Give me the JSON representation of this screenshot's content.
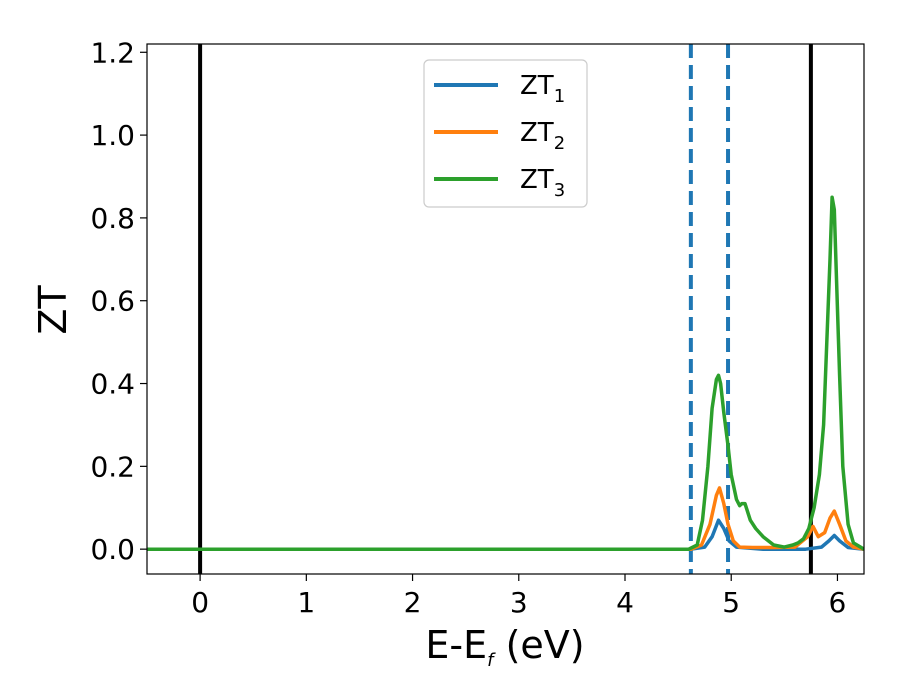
{
  "chart_data": {
    "type": "line",
    "xlabel_main": "E-E",
    "xlabel_sub": "f",
    "xlabel_unit": " (eV)",
    "ylabel": "ZT",
    "xlim": [
      -0.5,
      6.25
    ],
    "ylim": [
      -0.06,
      1.22
    ],
    "xticks": [
      0,
      1,
      2,
      3,
      4,
      5,
      6
    ],
    "yticks": [
      0.0,
      0.2,
      0.4,
      0.6,
      0.8,
      1.0,
      1.2
    ],
    "ytick_labels": [
      "0.0",
      "0.2",
      "0.4",
      "0.6",
      "0.8",
      "1.0",
      "1.2"
    ],
    "grid": false,
    "legend_position": "top-center",
    "vlines": [
      {
        "x": 0.0,
        "style": "solid",
        "color": "#000000"
      },
      {
        "x": 5.75,
        "style": "solid",
        "color": "#000000"
      },
      {
        "x": 4.62,
        "style": "dashed",
        "color": "#1f77b4"
      },
      {
        "x": 4.97,
        "style": "dashed",
        "color": "#1f77b4"
      }
    ],
    "series": [
      {
        "name": "ZT",
        "name_sub": "1",
        "color": "#1f77b4",
        "points": [
          [
            -0.5,
            0
          ],
          [
            4.62,
            0
          ],
          [
            4.75,
            0.005
          ],
          [
            4.82,
            0.03
          ],
          [
            4.88,
            0.07
          ],
          [
            4.93,
            0.05
          ],
          [
            4.98,
            0.02
          ],
          [
            5.05,
            0.005
          ],
          [
            5.3,
            0
          ],
          [
            5.7,
            0
          ],
          [
            5.85,
            0.005
          ],
          [
            5.92,
            0.02
          ],
          [
            5.97,
            0.033
          ],
          [
            6.02,
            0.02
          ],
          [
            6.1,
            0.004
          ],
          [
            6.25,
            0
          ]
        ]
      },
      {
        "name": "ZT",
        "name_sub": "2",
        "color": "#ff7f0e",
        "points": [
          [
            -0.5,
            0
          ],
          [
            4.62,
            0
          ],
          [
            4.72,
            0.01
          ],
          [
            4.8,
            0.06
          ],
          [
            4.86,
            0.13
          ],
          [
            4.89,
            0.148
          ],
          [
            4.93,
            0.11
          ],
          [
            4.97,
            0.06
          ],
          [
            5.02,
            0.02
          ],
          [
            5.08,
            0.005
          ],
          [
            5.2,
            0.004
          ],
          [
            5.4,
            0.004
          ],
          [
            5.6,
            0.005
          ],
          [
            5.72,
            0.03
          ],
          [
            5.77,
            0.055
          ],
          [
            5.82,
            0.03
          ],
          [
            5.88,
            0.04
          ],
          [
            5.93,
            0.075
          ],
          [
            5.97,
            0.092
          ],
          [
            6.02,
            0.06
          ],
          [
            6.08,
            0.02
          ],
          [
            6.15,
            0.005
          ],
          [
            6.25,
            0
          ]
        ]
      },
      {
        "name": "ZT",
        "name_sub": "3",
        "color": "#2ca02c",
        "points": [
          [
            -0.5,
            0
          ],
          [
            4.6,
            0
          ],
          [
            4.68,
            0.01
          ],
          [
            4.73,
            0.07
          ],
          [
            4.78,
            0.2
          ],
          [
            4.82,
            0.34
          ],
          [
            4.86,
            0.41
          ],
          [
            4.88,
            0.42
          ],
          [
            4.9,
            0.4
          ],
          [
            4.93,
            0.33
          ],
          [
            4.97,
            0.25
          ],
          [
            5.0,
            0.18
          ],
          [
            5.05,
            0.12
          ],
          [
            5.08,
            0.105
          ],
          [
            5.1,
            0.11
          ],
          [
            5.13,
            0.11
          ],
          [
            5.18,
            0.07
          ],
          [
            5.23,
            0.05
          ],
          [
            5.3,
            0.03
          ],
          [
            5.4,
            0.01
          ],
          [
            5.5,
            0.005
          ],
          [
            5.58,
            0.01
          ],
          [
            5.63,
            0.015
          ],
          [
            5.68,
            0.025
          ],
          [
            5.73,
            0.05
          ],
          [
            5.78,
            0.1
          ],
          [
            5.83,
            0.18
          ],
          [
            5.87,
            0.3
          ],
          [
            5.9,
            0.5
          ],
          [
            5.93,
            0.7
          ],
          [
            5.95,
            0.85
          ],
          [
            5.97,
            0.82
          ],
          [
            5.99,
            0.66
          ],
          [
            6.02,
            0.42
          ],
          [
            6.05,
            0.2
          ],
          [
            6.1,
            0.06
          ],
          [
            6.15,
            0.015
          ],
          [
            6.25,
            0
          ]
        ]
      }
    ]
  }
}
